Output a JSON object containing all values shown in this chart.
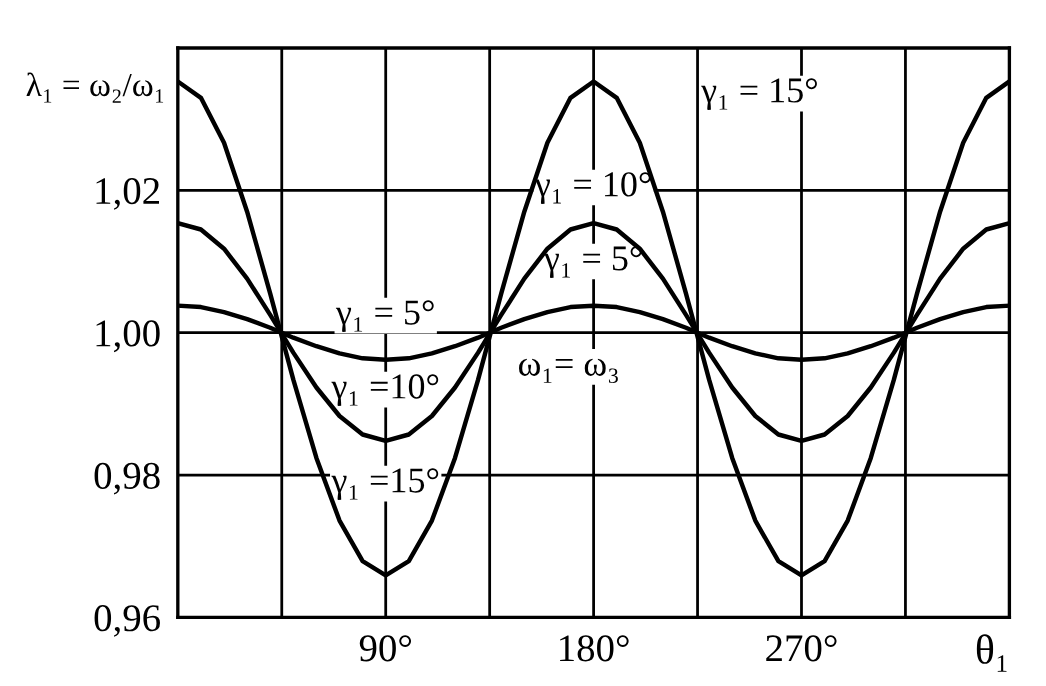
{
  "chart_data": {
    "type": "line",
    "xlabel": "θ₁",
    "ylabel": "λ₁ = ω₂/ω₁",
    "x": [
      0,
      10,
      20,
      30,
      40,
      50,
      60,
      70,
      80,
      90,
      100,
      110,
      120,
      130,
      140,
      150,
      160,
      170,
      180,
      190,
      200,
      210,
      220,
      230,
      240,
      250,
      260,
      270,
      280,
      290,
      300,
      310,
      320,
      330,
      340,
      350,
      360
    ],
    "series": [
      {
        "color": "#000000",
        "values": [
          1.0353,
          1.033,
          1.0267,
          1.017,
          1.0055,
          0.9934,
          0.9824,
          0.9736,
          0.9679,
          0.9659,
          0.9679,
          0.9736,
          0.9824,
          0.9934,
          1.0055,
          1.017,
          1.0267,
          1.033,
          1.0353,
          1.033,
          1.0267,
          1.017,
          1.0055,
          0.9934,
          0.9824,
          0.9736,
          0.9679,
          0.9659,
          0.9679,
          0.9736,
          0.9824,
          0.9934,
          1.0055,
          1.017,
          1.0267,
          1.033,
          1.0353
        ]
      },
      {
        "color": "#000000",
        "values": [
          1.0154,
          1.0145,
          1.0118,
          1.0076,
          1.0025,
          0.9972,
          0.9923,
          0.9883,
          0.9857,
          0.9848,
          0.9857,
          0.9883,
          0.9923,
          0.9972,
          1.0025,
          1.0076,
          1.0118,
          1.0145,
          1.0154,
          1.0145,
          1.0118,
          1.0076,
          1.0025,
          0.9972,
          0.9923,
          0.9883,
          0.9857,
          0.9848,
          0.9857,
          0.9883,
          0.9923,
          0.9972,
          1.0025,
          1.0076,
          1.0118,
          1.0145,
          1.0154
        ]
      },
      {
        "color": "#000000",
        "values": [
          1.0038,
          1.0036,
          1.0029,
          1.0019,
          1.0007,
          0.9993,
          0.9981,
          0.9971,
          0.9964,
          0.9962,
          0.9964,
          0.9971,
          0.9981,
          0.9993,
          1.0007,
          1.0019,
          1.0029,
          1.0036,
          1.0038,
          1.0036,
          1.0029,
          1.0019,
          1.0007,
          0.9993,
          0.9981,
          0.9971,
          0.9964,
          0.9962,
          0.9964,
          0.9971,
          0.9981,
          0.9993,
          1.0007,
          1.0019,
          1.0029,
          1.0036,
          1.0038
        ]
      }
    ],
    "xlim": [
      0,
      360
    ],
    "xticks": [
      {
        "value": 45,
        "label": null
      },
      {
        "value": 90,
        "label": "90°"
      },
      {
        "value": 135,
        "label": null
      },
      {
        "value": 180,
        "label": "180°"
      },
      {
        "value": 225,
        "label": null
      },
      {
        "value": 270,
        "label": "270°"
      },
      {
        "value": 315,
        "label": null
      }
    ],
    "ylim": [
      0.96,
      1.04
    ],
    "yticks": [
      {
        "value": 0.96,
        "label": "0,96"
      },
      {
        "value": 0.98,
        "label": "0,98"
      },
      {
        "value": 1.0,
        "label": "1,00"
      },
      {
        "value": 1.02,
        "label": "1,02"
      }
    ],
    "grid": true,
    "marker": "none",
    "line_style": "solid",
    "annotations": [
      "γ₁ = 15°",
      "γ₁ = 10°",
      "γ₁ = 5°",
      "γ₁ = 5°",
      "γ₁ =10°",
      "γ₁ =15°",
      "ω₁= ω₃"
    ]
  }
}
